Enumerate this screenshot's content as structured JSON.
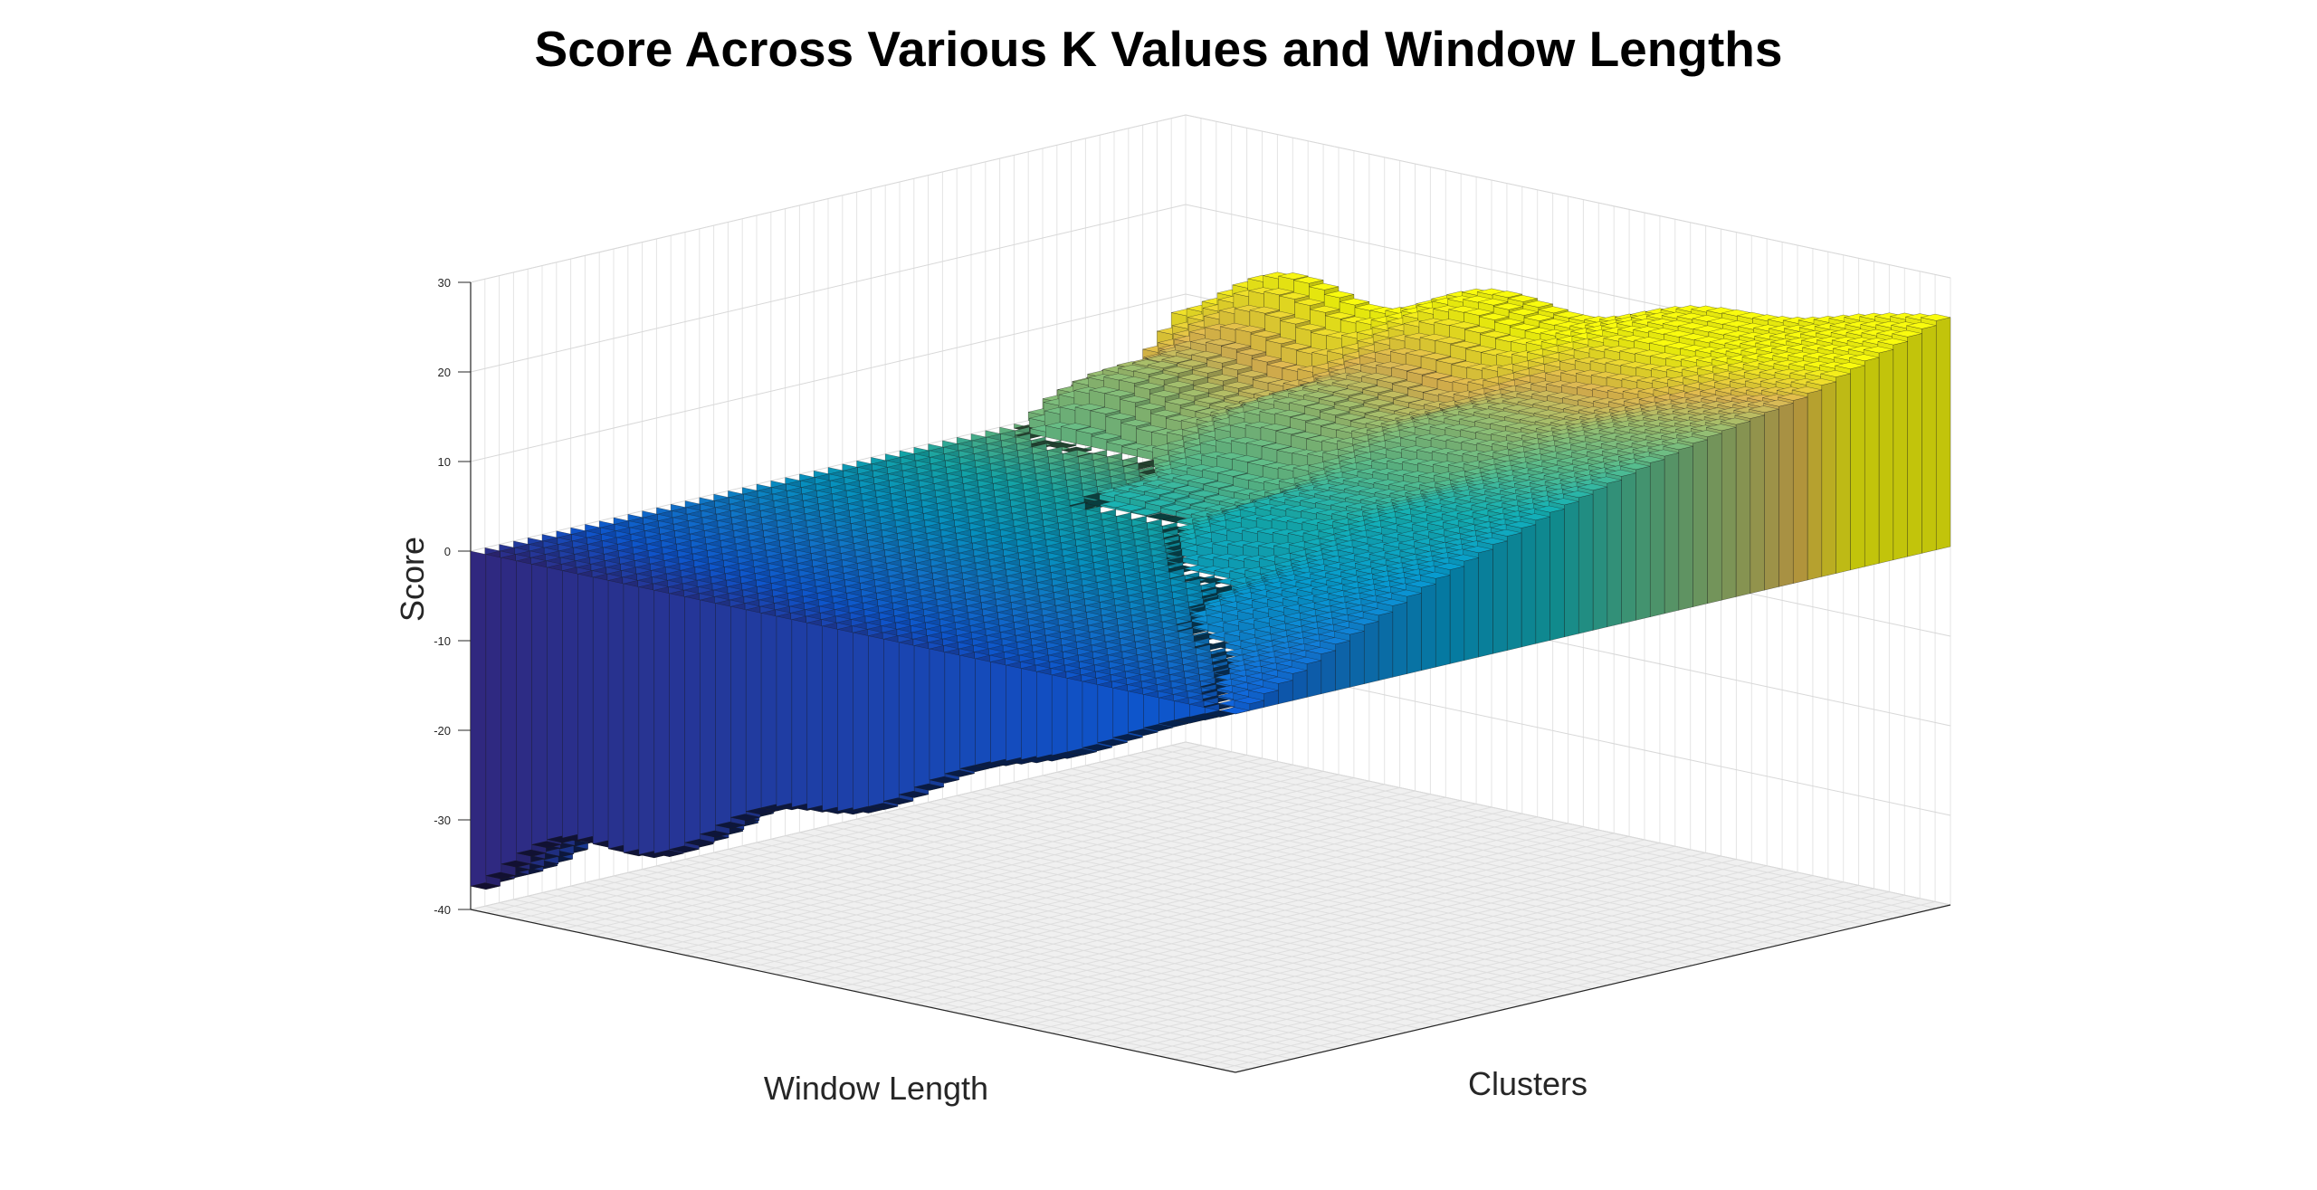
{
  "chart_data": {
    "type": "bar3",
    "title": "Score Across Various K Values and Window Lengths",
    "xlabel": "Window Length",
    "ylabel": "Clusters",
    "zlabel": "Score",
    "zlim": [
      -40,
      30
    ],
    "zticks": [
      30,
      20,
      10,
      0,
      -10,
      -20,
      -30,
      -40
    ],
    "grid": true,
    "colormap": "parula",
    "window_length_count": 100,
    "cluster_count": 100,
    "surface": {
      "description_of_values": "score at corners of the window-length x clusters grid",
      "corner_low_window_low_cluster": 0,
      "corner_high_window_low_cluster": -38,
      "corner_low_window_high_cluster": 26,
      "corner_high_window_high_cluster": 10,
      "max_score": 26,
      "min_score": -38
    }
  }
}
